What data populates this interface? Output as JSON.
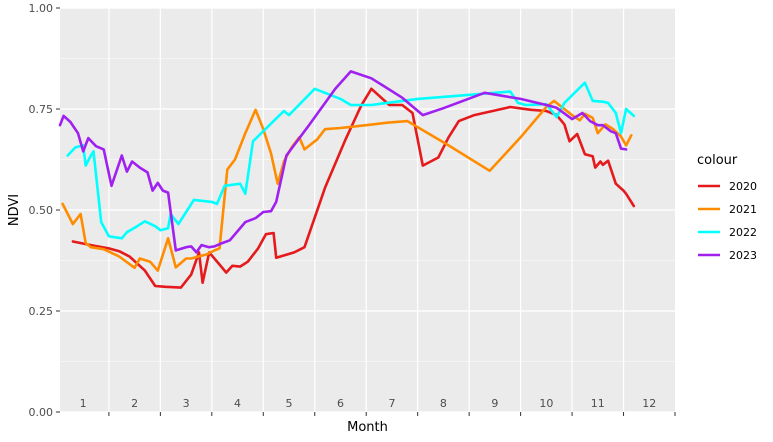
{
  "chart_data": {
    "type": "line",
    "xlabel": "Month",
    "ylabel": "NDVI",
    "xlim": [
      0.55,
      12.5
    ],
    "ylim": [
      0,
      1
    ],
    "yticks": [
      0,
      0.25,
      0.5,
      0.75,
      1
    ],
    "ytick_labels": [
      "0.00",
      "0.25",
      "0.50",
      "0.75",
      "1.00"
    ],
    "month_labels": [
      "1",
      "2",
      "3",
      "4",
      "5",
      "6",
      "7",
      "8",
      "9",
      "10",
      "11",
      "12"
    ],
    "grid": true,
    "legend": {
      "title": "colour",
      "position": "right"
    },
    "colors": {
      "panel_bg": "#ebebeb",
      "grid": "#ffffff",
      "text": "#4d4d4d"
    },
    "series": [
      {
        "name": "2020",
        "color": "#e41a1c",
        "points": [
          [
            0.8,
            0.422
          ],
          [
            1.2,
            0.412
          ],
          [
            1.5,
            0.405
          ],
          [
            1.7,
            0.398
          ],
          [
            1.9,
            0.385
          ],
          [
            2.2,
            0.35
          ],
          [
            2.4,
            0.312
          ],
          [
            2.6,
            0.31
          ],
          [
            2.9,
            0.308
          ],
          [
            3.1,
            0.34
          ],
          [
            3.25,
            0.395
          ],
          [
            3.32,
            0.32
          ],
          [
            3.45,
            0.395
          ],
          [
            3.65,
            0.365
          ],
          [
            3.78,
            0.345
          ],
          [
            3.9,
            0.362
          ],
          [
            4.05,
            0.36
          ],
          [
            4.2,
            0.372
          ],
          [
            4.4,
            0.405
          ],
          [
            4.55,
            0.44
          ],
          [
            4.7,
            0.443
          ],
          [
            4.75,
            0.382
          ],
          [
            5.1,
            0.395
          ],
          [
            5.3,
            0.408
          ],
          [
            5.7,
            0.555
          ],
          [
            6.1,
            0.675
          ],
          [
            6.4,
            0.758
          ],
          [
            6.6,
            0.8
          ],
          [
            6.95,
            0.76
          ],
          [
            7.2,
            0.76
          ],
          [
            7.4,
            0.74
          ],
          [
            7.6,
            0.61
          ],
          [
            7.9,
            0.63
          ],
          [
            8.1,
            0.68
          ],
          [
            8.3,
            0.72
          ],
          [
            8.6,
            0.735
          ],
          [
            9.3,
            0.755
          ],
          [
            9.7,
            0.748
          ],
          [
            10.0,
            0.745
          ],
          [
            10.2,
            0.735
          ],
          [
            10.35,
            0.712
          ],
          [
            10.45,
            0.67
          ],
          [
            10.6,
            0.688
          ],
          [
            10.75,
            0.638
          ],
          [
            10.9,
            0.633
          ],
          [
            10.95,
            0.605
          ],
          [
            11.05,
            0.62
          ],
          [
            11.1,
            0.612
          ],
          [
            11.2,
            0.622
          ],
          [
            11.35,
            0.565
          ],
          [
            11.5,
            0.548
          ],
          [
            11.55,
            0.54
          ],
          [
            11.7,
            0.51
          ]
        ]
      },
      {
        "name": "2021",
        "color": "#ff8c00",
        "points": [
          [
            0.6,
            0.515
          ],
          [
            0.8,
            0.465
          ],
          [
            0.95,
            0.49
          ],
          [
            1.05,
            0.418
          ],
          [
            1.15,
            0.408
          ],
          [
            1.4,
            0.403
          ],
          [
            1.7,
            0.385
          ],
          [
            2.0,
            0.357
          ],
          [
            2.1,
            0.38
          ],
          [
            2.3,
            0.372
          ],
          [
            2.45,
            0.35
          ],
          [
            2.65,
            0.43
          ],
          [
            2.8,
            0.358
          ],
          [
            3.0,
            0.38
          ],
          [
            3.1,
            0.38
          ],
          [
            3.4,
            0.39
          ],
          [
            3.55,
            0.4
          ],
          [
            3.65,
            0.405
          ],
          [
            3.8,
            0.6
          ],
          [
            3.95,
            0.625
          ],
          [
            4.15,
            0.69
          ],
          [
            4.35,
            0.748
          ],
          [
            4.5,
            0.7
          ],
          [
            4.65,
            0.64
          ],
          [
            4.78,
            0.565
          ],
          [
            4.9,
            0.62
          ],
          [
            5.05,
            0.655
          ],
          [
            5.2,
            0.68
          ],
          [
            5.3,
            0.65
          ],
          [
            5.55,
            0.675
          ],
          [
            5.7,
            0.7
          ],
          [
            6.0,
            0.703
          ],
          [
            6.5,
            0.71
          ],
          [
            6.9,
            0.716
          ],
          [
            7.3,
            0.72
          ],
          [
            8.1,
            0.66
          ],
          [
            8.9,
            0.597
          ],
          [
            9.5,
            0.68
          ],
          [
            10.0,
            0.755
          ],
          [
            10.15,
            0.77
          ],
          [
            10.25,
            0.76
          ],
          [
            10.5,
            0.735
          ],
          [
            10.65,
            0.722
          ],
          [
            10.75,
            0.738
          ],
          [
            10.9,
            0.728
          ],
          [
            11.0,
            0.69
          ],
          [
            11.15,
            0.712
          ],
          [
            11.3,
            0.7
          ],
          [
            11.45,
            0.682
          ],
          [
            11.55,
            0.66
          ],
          [
            11.65,
            0.685
          ]
        ]
      },
      {
        "name": "2022",
        "color": "#00ffff",
        "points": [
          [
            0.7,
            0.635
          ],
          [
            0.85,
            0.655
          ],
          [
            1.0,
            0.66
          ],
          [
            1.05,
            0.61
          ],
          [
            1.15,
            0.635
          ],
          [
            1.2,
            0.645
          ],
          [
            1.35,
            0.47
          ],
          [
            1.5,
            0.435
          ],
          [
            1.75,
            0.43
          ],
          [
            1.85,
            0.445
          ],
          [
            2.05,
            0.46
          ],
          [
            2.2,
            0.472
          ],
          [
            2.4,
            0.46
          ],
          [
            2.5,
            0.45
          ],
          [
            2.65,
            0.455
          ],
          [
            2.7,
            0.49
          ],
          [
            2.85,
            0.465
          ],
          [
            3.05,
            0.505
          ],
          [
            3.15,
            0.525
          ],
          [
            3.5,
            0.52
          ],
          [
            3.6,
            0.515
          ],
          [
            3.75,
            0.56
          ],
          [
            4.05,
            0.565
          ],
          [
            4.15,
            0.54
          ],
          [
            4.3,
            0.67
          ],
          [
            4.7,
            0.72
          ],
          [
            4.9,
            0.745
          ],
          [
            5.0,
            0.735
          ],
          [
            5.5,
            0.8
          ],
          [
            6.0,
            0.775
          ],
          [
            6.2,
            0.76
          ],
          [
            6.6,
            0.76
          ],
          [
            7.5,
            0.775
          ],
          [
            8.3,
            0.783
          ],
          [
            9.3,
            0.793
          ],
          [
            9.45,
            0.765
          ],
          [
            9.6,
            0.76
          ],
          [
            10.0,
            0.762
          ],
          [
            10.2,
            0.73
          ],
          [
            10.35,
            0.765
          ],
          [
            10.55,
            0.79
          ],
          [
            10.75,
            0.815
          ],
          [
            10.9,
            0.77
          ],
          [
            11.1,
            0.768
          ],
          [
            11.2,
            0.765
          ],
          [
            11.35,
            0.74
          ],
          [
            11.45,
            0.69
          ],
          [
            11.55,
            0.75
          ],
          [
            11.7,
            0.733
          ]
        ]
      },
      {
        "name": "2023",
        "color": "#a020f0",
        "points": [
          [
            0.55,
            0.71
          ],
          [
            0.62,
            0.733
          ],
          [
            0.75,
            0.718
          ],
          [
            0.9,
            0.69
          ],
          [
            1.0,
            0.645
          ],
          [
            1.1,
            0.678
          ],
          [
            1.25,
            0.658
          ],
          [
            1.4,
            0.65
          ],
          [
            1.55,
            0.56
          ],
          [
            1.75,
            0.635
          ],
          [
            1.85,
            0.595
          ],
          [
            1.95,
            0.62
          ],
          [
            2.1,
            0.605
          ],
          [
            2.25,
            0.593
          ],
          [
            2.35,
            0.548
          ],
          [
            2.45,
            0.567
          ],
          [
            2.55,
            0.548
          ],
          [
            2.65,
            0.543
          ],
          [
            2.8,
            0.4
          ],
          [
            3.0,
            0.408
          ],
          [
            3.1,
            0.41
          ],
          [
            3.2,
            0.395
          ],
          [
            3.3,
            0.413
          ],
          [
            3.45,
            0.408
          ],
          [
            3.55,
            0.41
          ],
          [
            3.7,
            0.418
          ],
          [
            3.85,
            0.425
          ],
          [
            4.15,
            0.47
          ],
          [
            4.35,
            0.48
          ],
          [
            4.5,
            0.495
          ],
          [
            4.65,
            0.497
          ],
          [
            4.75,
            0.52
          ],
          [
            4.95,
            0.635
          ],
          [
            5.4,
            0.712
          ],
          [
            5.9,
            0.8
          ],
          [
            6.2,
            0.843
          ],
          [
            6.6,
            0.826
          ],
          [
            7.2,
            0.778
          ],
          [
            7.6,
            0.735
          ],
          [
            8.0,
            0.752
          ],
          [
            8.8,
            0.79
          ],
          [
            9.5,
            0.775
          ],
          [
            10.0,
            0.76
          ],
          [
            10.2,
            0.753
          ],
          [
            10.5,
            0.725
          ],
          [
            10.7,
            0.74
          ],
          [
            10.85,
            0.72
          ],
          [
            11.0,
            0.71
          ],
          [
            11.1,
            0.71
          ],
          [
            11.25,
            0.695
          ],
          [
            11.35,
            0.69
          ],
          [
            11.45,
            0.652
          ],
          [
            11.55,
            0.65
          ]
        ]
      }
    ]
  }
}
